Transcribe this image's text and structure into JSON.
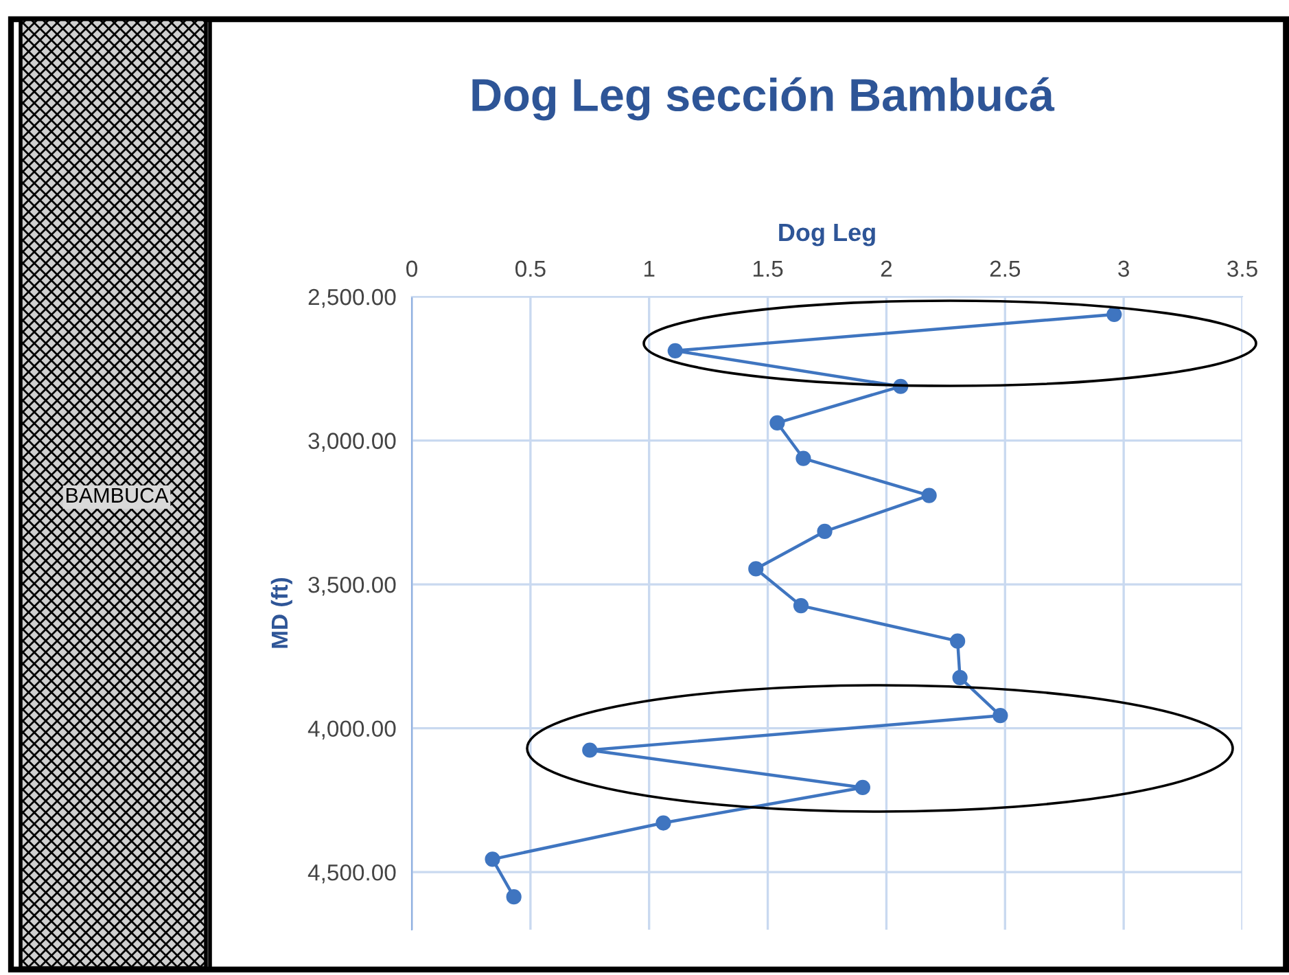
{
  "chart_data": {
    "type": "line",
    "title": "Dog Leg sección Bambucá",
    "xlabel": "Dog Leg",
    "ylabel": "MD (ft)",
    "annotations": [
      "BAMBUCA"
    ],
    "xlim": [
      0,
      3.5
    ],
    "xticks": [
      0,
      0.5,
      1,
      1.5,
      2,
      2.5,
      3,
      3.5
    ],
    "ylim": [
      4700,
      2500
    ],
    "yticks": [
      {
        "value": 2500,
        "label": "2,500.00"
      },
      {
        "value": 3000,
        "label": "3,000.00"
      },
      {
        "value": 3500,
        "label": "3,500.00"
      },
      {
        "value": 4000,
        "label": "4,000.00"
      },
      {
        "value": 4500,
        "label": "4,500.00"
      }
    ],
    "grid": true,
    "marker": "circle",
    "line_style": "solid",
    "series": [
      {
        "color": "#3f75c0",
        "x": [
          2.96,
          1.11,
          2.06,
          1.54,
          1.65,
          2.18,
          1.74,
          1.45,
          1.64,
          2.3,
          2.31,
          2.48,
          0.75,
          1.9,
          1.06,
          0.34,
          0.43
        ],
        "values": [
          2562,
          2688,
          2812,
          2939,
          3062,
          3191,
          3316,
          3446,
          3574,
          3697,
          3824,
          3956,
          4076,
          4206,
          4329,
          4455,
          4586
        ]
      }
    ]
  }
}
